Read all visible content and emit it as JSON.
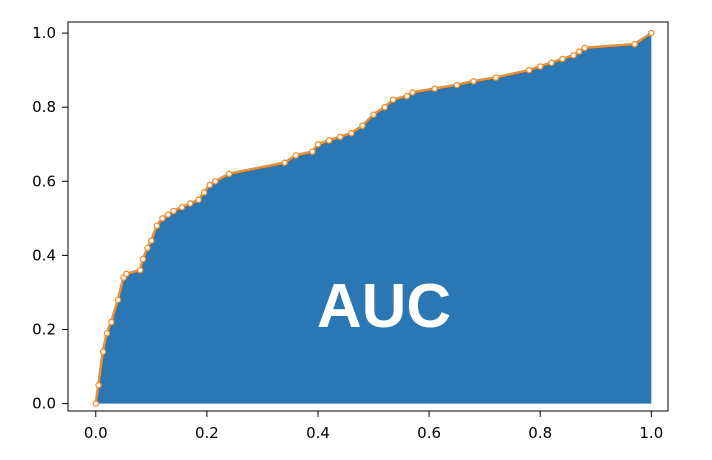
{
  "chart_data": {
    "type": "area",
    "title": "",
    "xlabel": "",
    "ylabel": "",
    "xlim": [
      -0.05,
      1.03
    ],
    "ylim": [
      -0.02,
      1.03
    ],
    "x_ticks": [
      "0.0",
      "0.2",
      "0.4",
      "0.6",
      "0.8",
      "1.0"
    ],
    "y_ticks": [
      "0.0",
      "0.2",
      "0.4",
      "0.6",
      "0.8",
      "1.0"
    ],
    "annotation": "AUC",
    "grid": false,
    "colors": {
      "fill": "#2a77b4",
      "line": "#f28e2b",
      "marker_fill": "#ffffff",
      "outline": "#555555"
    },
    "series": [
      {
        "points": [
          [
            0.0,
            0.0
          ],
          [
            0.005,
            0.05
          ],
          [
            0.013,
            0.14
          ],
          [
            0.02,
            0.19
          ],
          [
            0.028,
            0.22
          ],
          [
            0.04,
            0.28
          ],
          [
            0.05,
            0.34
          ],
          [
            0.055,
            0.35
          ],
          [
            0.08,
            0.36
          ],
          [
            0.085,
            0.39
          ],
          [
            0.093,
            0.42
          ],
          [
            0.1,
            0.44
          ],
          [
            0.11,
            0.48
          ],
          [
            0.12,
            0.5
          ],
          [
            0.13,
            0.51
          ],
          [
            0.14,
            0.52
          ],
          [
            0.155,
            0.53
          ],
          [
            0.17,
            0.54
          ],
          [
            0.185,
            0.55
          ],
          [
            0.195,
            0.57
          ],
          [
            0.205,
            0.59
          ],
          [
            0.215,
            0.6
          ],
          [
            0.24,
            0.62
          ],
          [
            0.34,
            0.65
          ],
          [
            0.36,
            0.67
          ],
          [
            0.39,
            0.68
          ],
          [
            0.4,
            0.7
          ],
          [
            0.42,
            0.71
          ],
          [
            0.44,
            0.72
          ],
          [
            0.46,
            0.73
          ],
          [
            0.48,
            0.75
          ],
          [
            0.5,
            0.78
          ],
          [
            0.52,
            0.8
          ],
          [
            0.535,
            0.82
          ],
          [
            0.56,
            0.83
          ],
          [
            0.57,
            0.84
          ],
          [
            0.61,
            0.85
          ],
          [
            0.65,
            0.86
          ],
          [
            0.68,
            0.87
          ],
          [
            0.72,
            0.88
          ],
          [
            0.78,
            0.9
          ],
          [
            0.8,
            0.91
          ],
          [
            0.82,
            0.92
          ],
          [
            0.84,
            0.93
          ],
          [
            0.86,
            0.94
          ],
          [
            0.87,
            0.95
          ],
          [
            0.88,
            0.96
          ],
          [
            0.97,
            0.97
          ],
          [
            1.0,
            1.0
          ]
        ]
      }
    ]
  }
}
